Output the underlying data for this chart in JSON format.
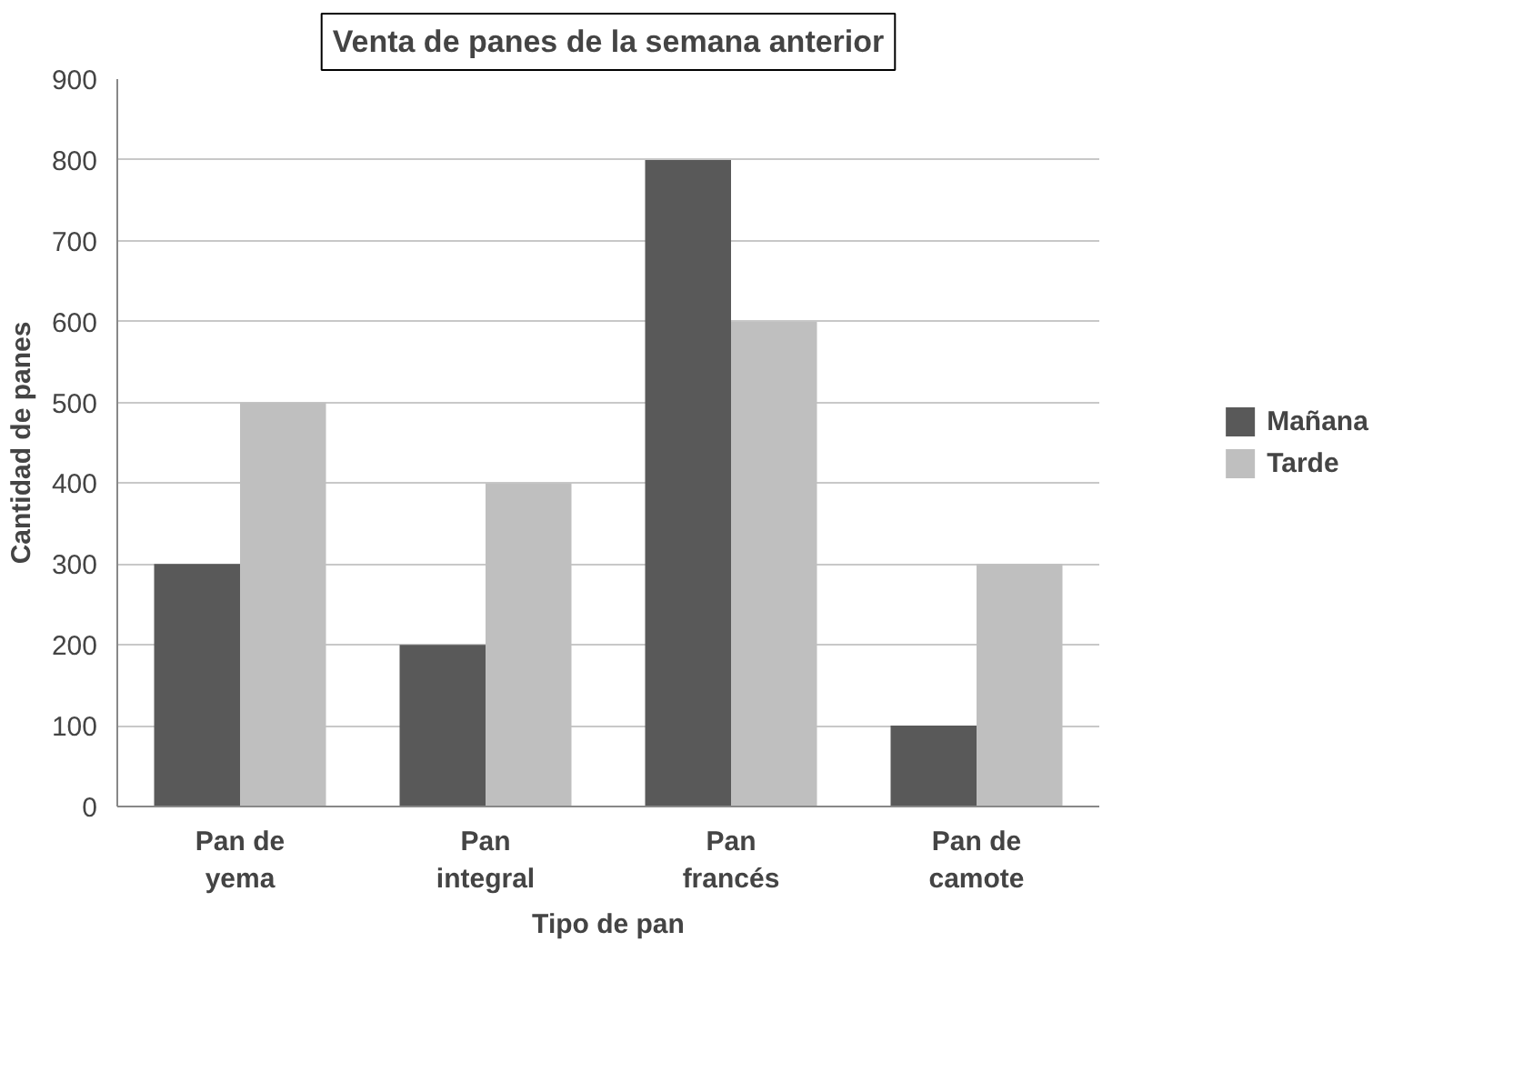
{
  "chart_data": {
    "type": "bar",
    "title": "Venta de panes de la semana anterior",
    "xlabel": "Tipo de pan",
    "ylabel": "Cantidad de panes",
    "categories": [
      "Pan de\nyema",
      "Pan\nintegral",
      "Pan\nfrancés",
      "Pan de\ncamote"
    ],
    "series": [
      {
        "name": "Mañana",
        "color": "#595959",
        "values": [
          300,
          200,
          800,
          100
        ]
      },
      {
        "name": "Tarde",
        "color": "#bfbfbf",
        "values": [
          500,
          400,
          600,
          300
        ]
      }
    ],
    "ylim": [
      0,
      900
    ],
    "yticks": [
      0,
      100,
      200,
      300,
      400,
      500,
      600,
      700,
      800,
      900
    ],
    "grid": "y",
    "legend": "right"
  }
}
